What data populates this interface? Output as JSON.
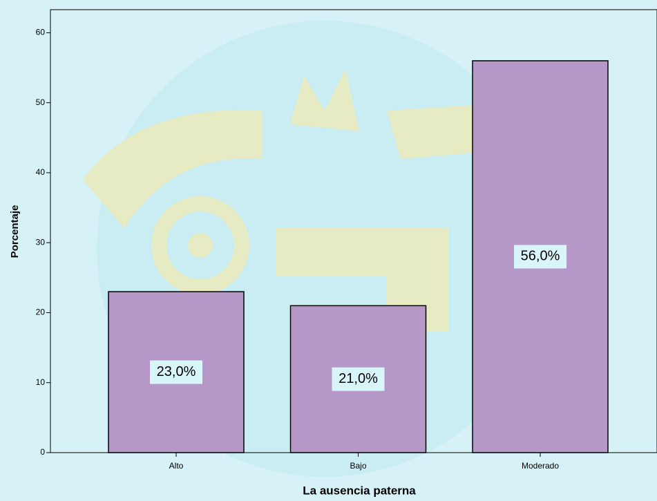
{
  "chart_data": {
    "type": "bar",
    "x_label": "La ausencia paterna",
    "y_label": "Porcentaje",
    "categories": [
      "Alto",
      "Bajo",
      "Moderado"
    ],
    "values": [
      23.0,
      21.0,
      56.0
    ],
    "value_labels": [
      "23,0%",
      "21,0%",
      "56,0%"
    ],
    "color": "#b698c8",
    "ylim": [
      0,
      63.3
    ],
    "yticks": [
      0,
      10,
      20,
      30,
      40,
      50,
      60
    ]
  }
}
